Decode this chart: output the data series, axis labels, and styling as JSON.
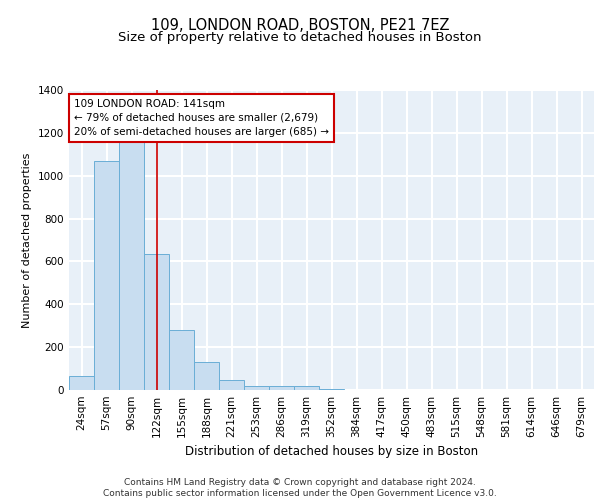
{
  "title1": "109, LONDON ROAD, BOSTON, PE21 7EZ",
  "title2": "Size of property relative to detached houses in Boston",
  "xlabel": "Distribution of detached houses by size in Boston",
  "ylabel": "Number of detached properties",
  "categories": [
    "24sqm",
    "57sqm",
    "90sqm",
    "122sqm",
    "155sqm",
    "188sqm",
    "221sqm",
    "253sqm",
    "286sqm",
    "319sqm",
    "352sqm",
    "384sqm",
    "417sqm",
    "450sqm",
    "483sqm",
    "515sqm",
    "548sqm",
    "581sqm",
    "614sqm",
    "646sqm",
    "679sqm"
  ],
  "values": [
    65,
    1070,
    1160,
    635,
    280,
    130,
    45,
    20,
    20,
    20,
    5,
    0,
    0,
    0,
    0,
    0,
    0,
    0,
    0,
    0,
    0
  ],
  "bar_color": "#c8ddf0",
  "bar_edge_color": "#6aaed6",
  "annotation_text_line1": "109 LONDON ROAD: 141sqm",
  "annotation_text_line2": "← 79% of detached houses are smaller (2,679)",
  "annotation_text_line3": "20% of semi-detached houses are larger (685) →",
  "annotation_box_color": "white",
  "annotation_box_edge_color": "#cc0000",
  "vertical_line_x": 3.0,
  "ylim": [
    0,
    1400
  ],
  "yticks": [
    0,
    200,
    400,
    600,
    800,
    1000,
    1200,
    1400
  ],
  "bg_color": "#e8f0f8",
  "grid_color": "white",
  "footnote": "Contains HM Land Registry data © Crown copyright and database right 2024.\nContains public sector information licensed under the Open Government Licence v3.0.",
  "title1_fontsize": 10.5,
  "title2_fontsize": 9.5,
  "xlabel_fontsize": 8.5,
  "ylabel_fontsize": 8,
  "footnote_fontsize": 6.5,
  "tick_fontsize": 7.5,
  "ann_fontsize": 7.5
}
